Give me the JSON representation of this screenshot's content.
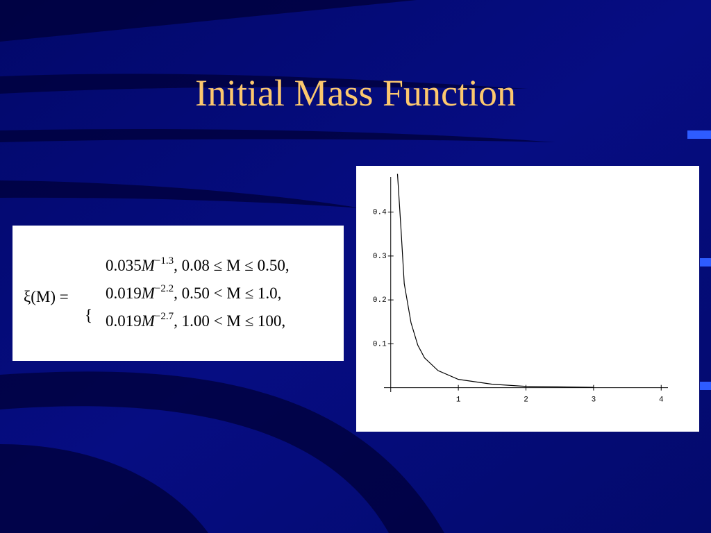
{
  "title": "Initial Mass Function",
  "equation": {
    "lhs": "ξ(M) =",
    "rows": [
      {
        "coef": "0.035",
        "var": "M",
        "exp": "−1.3",
        "cond": ", 0.08 ≤ M ≤ 0.50,"
      },
      {
        "coef": "0.019",
        "var": "M",
        "exp": "−2.2",
        "cond": ", 0.50 < M ≤ 1.0,"
      },
      {
        "coef": "0.019",
        "var": "M",
        "exp": "−2.7",
        "cond": ", 1.00 < M ≤ 100,"
      }
    ]
  },
  "chart_data": {
    "type": "line",
    "color": "#000000",
    "x": [
      0.1,
      0.15,
      0.2,
      0.3,
      0.4,
      0.5,
      0.7,
      1.0,
      1.5,
      2.0,
      3.0
    ],
    "values": [
      0.487,
      0.366,
      0.237,
      0.148,
      0.097,
      0.068,
      0.039,
      0.019,
      0.008,
      0.003,
      0.001
    ],
    "xlim": [
      -0.1,
      4.1
    ],
    "ylim": [
      -0.01,
      0.48
    ],
    "xticks": [
      1,
      2,
      3,
      4
    ],
    "yticks": [
      0.1,
      0.2,
      0.3,
      0.4
    ],
    "grid": false
  }
}
